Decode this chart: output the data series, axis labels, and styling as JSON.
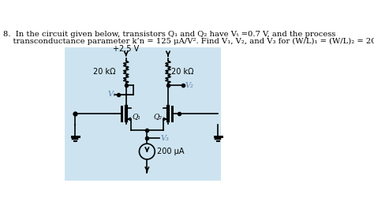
{
  "bg_color": "#ffffff",
  "circuit_bg": "#cde4f0",
  "title_line1": "8.  In the circuit given below, transistors Q₁ and Q₂ have Vₜ =0.7 V, and the process",
  "title_line2": "    transconductance parameter k’n = 125 μA/V². Find V₁, V₂, and V₃ for (W/L)₁ = (W/L)₂ = 20.",
  "vdd_label": "+2.5 V",
  "r1_label": "20 kΩ",
  "r2_label": "20 kΩ",
  "v1_label": "V₁",
  "v2_label": "V₂",
  "v3_label": "V₃",
  "q1_label": "Q₁",
  "q2_label": "Q₂",
  "isrc_label": "200 μA",
  "text_color": "#000000",
  "lc": "#000000",
  "label_color": "#5b7fa6"
}
